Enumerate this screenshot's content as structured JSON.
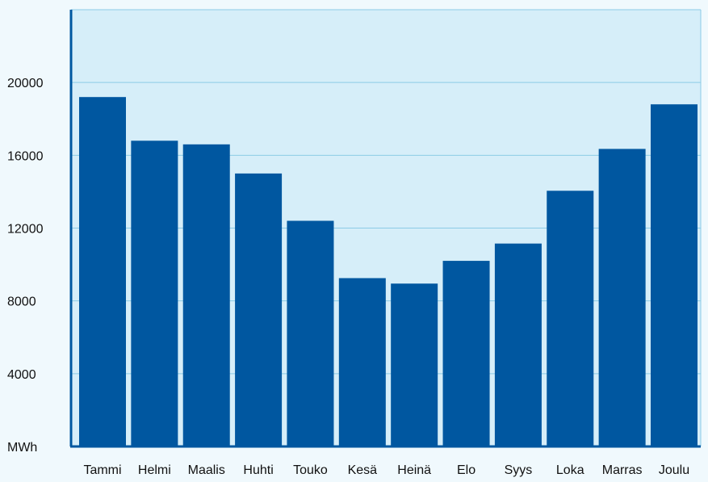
{
  "chart_data": {
    "type": "bar",
    "unit_label": "MWh",
    "categories": [
      "Tammi",
      "Helmi",
      "Maalis",
      "Huhti",
      "Touko",
      "Kesä",
      "Heinä",
      "Elo",
      "Syys",
      "Loka",
      "Marras",
      "Joulu"
    ],
    "values": [
      19200,
      16800,
      16600,
      15000,
      12400,
      9250,
      8950,
      10200,
      11150,
      14050,
      16350,
      18800
    ],
    "yticks": [
      4000,
      8000,
      12000,
      16000,
      20000
    ],
    "ylim": [
      0,
      24000
    ],
    "grid": true,
    "colors": {
      "bar": "#0057a0",
      "plot_background": "#d6eef9",
      "page_background": "#f0f9fd",
      "gridline": "#8ccbe6",
      "axis": "#0057a0"
    }
  }
}
